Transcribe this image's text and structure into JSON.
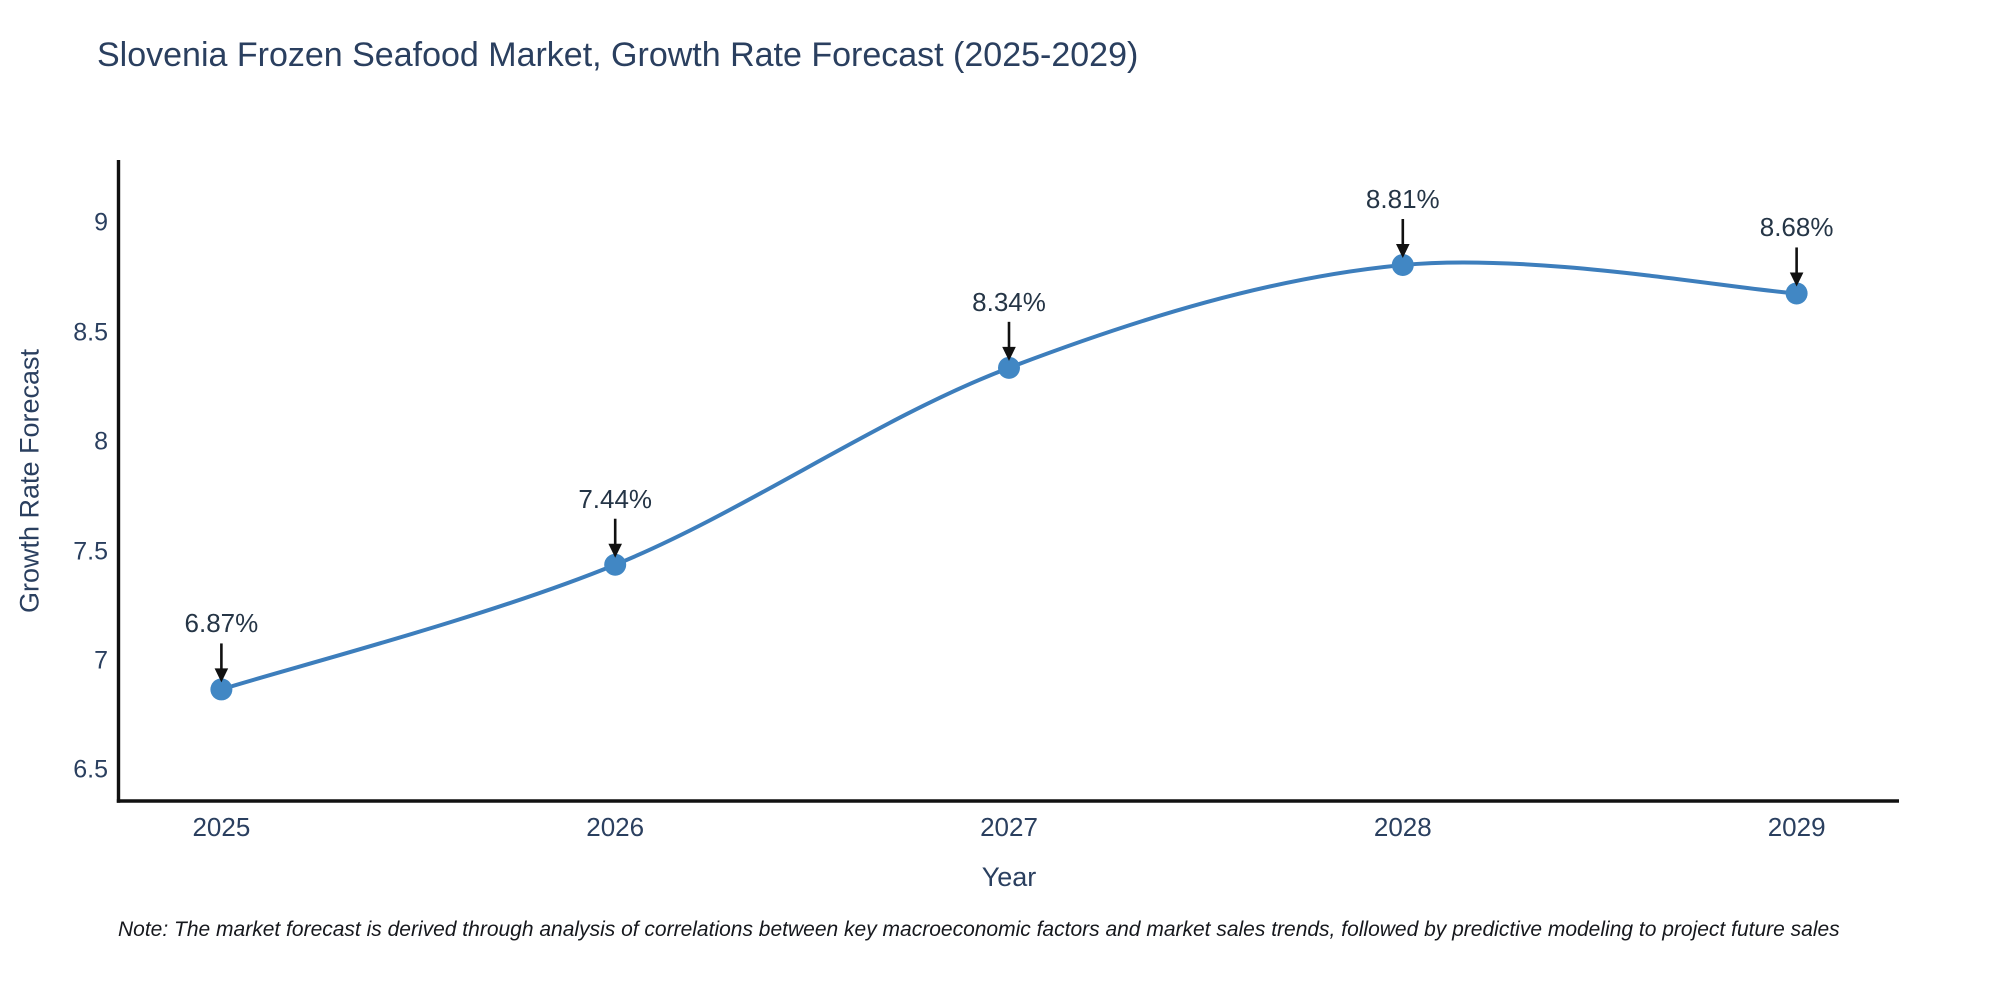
{
  "page": {
    "background": "#ffffff"
  },
  "title": "Slovenia Frozen Seafood Market, Growth Rate Forecast (2025-2029)",
  "chart_data": {
    "type": "line",
    "title": "Slovenia Frozen Seafood Market, Growth Rate Forecast (2025-2029)",
    "xlabel": "Year",
    "ylabel": "Growth Rate Forecast",
    "categories": [
      2025,
      2026,
      2027,
      2028,
      2029
    ],
    "series": [
      {
        "name": "Growth Rate Forecast",
        "values": [
          6.87,
          7.44,
          8.34,
          8.81,
          8.68
        ]
      }
    ],
    "point_labels": [
      "6.87%",
      "7.44%",
      "8.34%",
      "8.81%",
      "8.68%"
    ],
    "xticks": {
      "labels": [
        "2025",
        "2026",
        "2027",
        "2028",
        "2029"
      ]
    },
    "yticks": {
      "values": [
        9,
        8.5,
        8,
        7.5,
        7,
        6.5
      ],
      "labels": [
        "9",
        "8.5",
        "8",
        "7.5",
        "7",
        "6.5"
      ]
    },
    "xlim": [
      2024.74,
      2029.26
    ],
    "ylim": [
      6.36,
      9.29
    ],
    "line_shape": "spline",
    "grid": false,
    "legend_position": "none",
    "colors": {
      "line": "#3d7ebc",
      "marker": "#4187c4",
      "axis": "#111111",
      "arrow": "#111111",
      "text": "#2a3f5f",
      "annotation": "#253546"
    }
  },
  "note": {
    "text": "Note: The market forecast is derived through analysis of correlations between key macroeconomic factors and market sales trends, followed by predictive modeling to project future sales"
  }
}
